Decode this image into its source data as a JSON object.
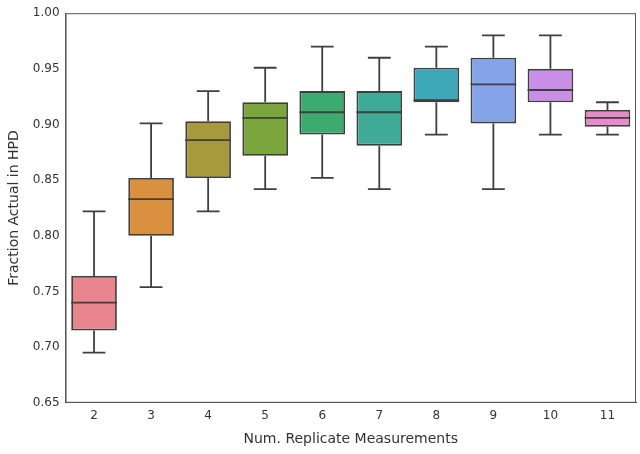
{
  "chart_data": {
    "type": "box",
    "x_label": "Num. Replicate Measurements",
    "y_label": "Fraction Actual in HPD",
    "categories": [
      "2",
      "3",
      "4",
      "5",
      "6",
      "7",
      "8",
      "9",
      "10",
      "11"
    ],
    "min": [
      0.695,
      0.754,
      0.822,
      0.842,
      0.852,
      0.842,
      0.891,
      0.842,
      0.891,
      0.891
    ],
    "q1": [
      0.715,
      0.8,
      0.852,
      0.872,
      0.891,
      0.881,
      0.92,
      0.901,
      0.92,
      0.898
    ],
    "median": [
      0.74,
      0.833,
      0.886,
      0.906,
      0.911,
      0.911,
      0.922,
      0.936,
      0.931,
      0.906
    ],
    "q3": [
      0.764,
      0.852,
      0.903,
      0.92,
      0.93,
      0.93,
      0.951,
      0.96,
      0.95,
      0.913
    ],
    "max": [
      0.822,
      0.901,
      0.93,
      0.951,
      0.97,
      0.96,
      0.97,
      0.98,
      0.98,
      0.92
    ],
    "colors": [
      "#e9858f",
      "#d9903f",
      "#a69a3c",
      "#7aa63c",
      "#3dab6f",
      "#3fab96",
      "#3ba7b7",
      "#84a3e8",
      "#c88ee8",
      "#e78bc9"
    ],
    "ylim": [
      0.65,
      1.0
    ],
    "yticks": [
      0.65,
      {
        "value": 0.7,
        "label": "0.70"
      },
      0.75,
      {
        "value": 0.8,
        "label": "0.80"
      },
      0.85,
      {
        "value": 0.9,
        "label": "0.90"
      },
      0.95,
      {
        "value": 1.0,
        "label": "1.00"
      }
    ],
    "grid": false
  }
}
